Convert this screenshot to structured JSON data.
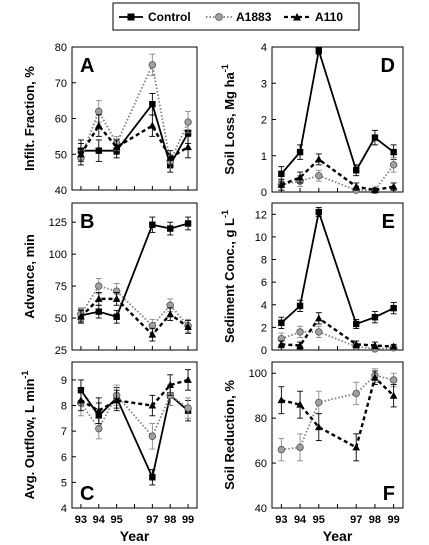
{
  "legend": {
    "entries": [
      {
        "name": "Control",
        "marker": "square-marker-icon"
      },
      {
        "name": "A1883",
        "marker": "circle-marker-icon"
      },
      {
        "name": "A110",
        "marker": "triangle-marker-icon"
      }
    ]
  },
  "colors": {
    "Control": "#000000",
    "A1883": "#7f7f7f",
    "A110": "#000000"
  },
  "chart_data": [
    {
      "type": "line",
      "panel_letter": "A",
      "ylabel": "Infilt. Fraction, %",
      "xlabel": "",
      "x": [
        93,
        94,
        95,
        97,
        98,
        99
      ],
      "x_ticks": [
        "93",
        "94",
        "95",
        "97",
        "98",
        "99"
      ],
      "y_ticks": [
        "40",
        "50",
        "60",
        "70",
        "80"
      ],
      "ylim": [
        40,
        80
      ],
      "series": [
        {
          "name": "Control",
          "values": [
            51,
            51,
            51,
            64,
            47,
            56
          ],
          "err": [
            3,
            3,
            2,
            3,
            2,
            3
          ]
        },
        {
          "name": "A1883",
          "values": [
            49,
            62,
            53,
            75,
            48,
            59
          ],
          "err": [
            2,
            3,
            2,
            3,
            2,
            3
          ]
        },
        {
          "name": "A110",
          "values": [
            50,
            58,
            52,
            58,
            49,
            52
          ],
          "err": [
            3,
            3,
            2,
            3,
            2,
            3
          ]
        }
      ]
    },
    {
      "type": "line",
      "panel_letter": "B",
      "ylabel": "Advance, min",
      "xlabel": "",
      "x": [
        93,
        94,
        95,
        97,
        98,
        99
      ],
      "x_ticks": [
        "93",
        "94",
        "95",
        "97",
        "98",
        "99"
      ],
      "y_ticks": [
        "25",
        "50",
        "75",
        "100",
        "125"
      ],
      "ylim": [
        25,
        140
      ],
      "series": [
        {
          "name": "Control",
          "values": [
            52,
            55,
            51,
            123,
            120,
            124
          ],
          "err": [
            5,
            5,
            5,
            6,
            5,
            5
          ]
        },
        {
          "name": "A1883",
          "values": [
            53,
            75,
            71,
            44,
            60,
            44
          ],
          "err": [
            5,
            6,
            6,
            5,
            5,
            5
          ]
        },
        {
          "name": "A110",
          "values": [
            51,
            65,
            65,
            37,
            53,
            43
          ],
          "err": [
            5,
            5,
            5,
            5,
            5,
            5
          ]
        }
      ]
    },
    {
      "type": "line",
      "panel_letter": "C",
      "ylabel": "Avg. Outflow, L min",
      "ylabel_sup": "-1",
      "xlabel": "Year",
      "x": [
        93,
        94,
        95,
        97,
        98,
        99
      ],
      "x_ticks": [
        "93",
        "94",
        "95",
        "97",
        "98",
        "99"
      ],
      "y_ticks": [
        "4",
        "5",
        "6",
        "7",
        "8",
        "9"
      ],
      "ylim": [
        4,
        9.7
      ],
      "series": [
        {
          "name": "Control",
          "values": [
            8.6,
            7.6,
            8.3,
            5.2,
            8.4,
            7.8
          ],
          "err": [
            0.4,
            0.5,
            0.4,
            0.3,
            0.4,
            0.4
          ]
        },
        {
          "name": "A1883",
          "values": [
            8.1,
            7.1,
            8.4,
            6.8,
            8.4,
            7.9
          ],
          "err": [
            0.5,
            0.4,
            0.4,
            0.5,
            0.4,
            0.4
          ]
        },
        {
          "name": "A110",
          "values": [
            8.2,
            7.8,
            8.2,
            8.0,
            8.8,
            9.0
          ],
          "err": [
            0.4,
            0.5,
            0.4,
            0.4,
            0.4,
            0.4
          ]
        }
      ]
    },
    {
      "type": "line",
      "panel_letter": "D",
      "ylabel": "Soil Loss, Mg ha",
      "ylabel_sup": "-1",
      "xlabel": "",
      "x": [
        93,
        94,
        95,
        97,
        98,
        99
      ],
      "x_ticks": [
        "93",
        "94",
        "95",
        "97",
        "98",
        "99"
      ],
      "y_ticks": [
        "0",
        "1",
        "2",
        "3",
        "4"
      ],
      "ylim": [
        0,
        4
      ],
      "series": [
        {
          "name": "Control",
          "values": [
            0.5,
            1.1,
            3.9,
            0.6,
            1.5,
            1.1
          ],
          "err": [
            0.2,
            0.2,
            0.1,
            0.15,
            0.2,
            0.2
          ]
        },
        {
          "name": "A1883",
          "values": [
            0.2,
            0.3,
            0.45,
            0.05,
            0.05,
            0.75
          ],
          "err": [
            0.15,
            0.15,
            0.15,
            0.05,
            0.05,
            0.2
          ]
        },
        {
          "name": "A110",
          "values": [
            0.2,
            0.4,
            0.9,
            0.15,
            0.05,
            0.15
          ],
          "err": [
            0.15,
            0.15,
            0.15,
            0.1,
            0.05,
            0.1
          ]
        }
      ]
    },
    {
      "type": "line",
      "panel_letter": "E",
      "ylabel": "Sediment Conc., g L",
      "ylabel_sup": "-1",
      "xlabel": "",
      "x": [
        93,
        94,
        95,
        97,
        98,
        99
      ],
      "x_ticks": [
        "93",
        "94",
        "95",
        "97",
        "98",
        "99"
      ],
      "y_ticks": [
        "0",
        "2",
        "4",
        "6",
        "8",
        "10",
        "12"
      ],
      "ylim": [
        0,
        13
      ],
      "series": [
        {
          "name": "Control",
          "values": [
            2.4,
            3.9,
            12.2,
            2.3,
            2.9,
            3.7
          ],
          "err": [
            0.5,
            0.5,
            0.4,
            0.4,
            0.5,
            0.5
          ]
        },
        {
          "name": "A1883",
          "values": [
            1.0,
            1.6,
            1.6,
            0.3,
            0.1,
            0.2
          ],
          "err": [
            0.5,
            0.5,
            0.5,
            0.2,
            0.1,
            0.2
          ]
        },
        {
          "name": "A110",
          "values": [
            0.5,
            0.4,
            2.8,
            0.5,
            0.4,
            0.3
          ],
          "err": [
            0.3,
            0.3,
            0.5,
            0.3,
            0.3,
            0.2
          ]
        }
      ]
    },
    {
      "type": "line",
      "panel_letter": "F",
      "ylabel": "Soil Reduction, %",
      "xlabel": "Year",
      "x": [
        93,
        94,
        95,
        97,
        98,
        99
      ],
      "x_ticks": [
        "93",
        "94",
        "95",
        "97",
        "98",
        "99"
      ],
      "y_ticks": [
        "40",
        "60",
        "80",
        "100"
      ],
      "ylim": [
        40,
        105
      ],
      "series": [
        {
          "name": "A1883",
          "values": [
            66,
            67,
            87,
            91,
            99,
            97
          ],
          "err": [
            5,
            6,
            5,
            5,
            3,
            3
          ]
        },
        {
          "name": "A110",
          "values": [
            88,
            86,
            76,
            67,
            98,
            90
          ],
          "err": [
            6,
            6,
            6,
            6,
            3,
            5
          ]
        }
      ]
    }
  ]
}
